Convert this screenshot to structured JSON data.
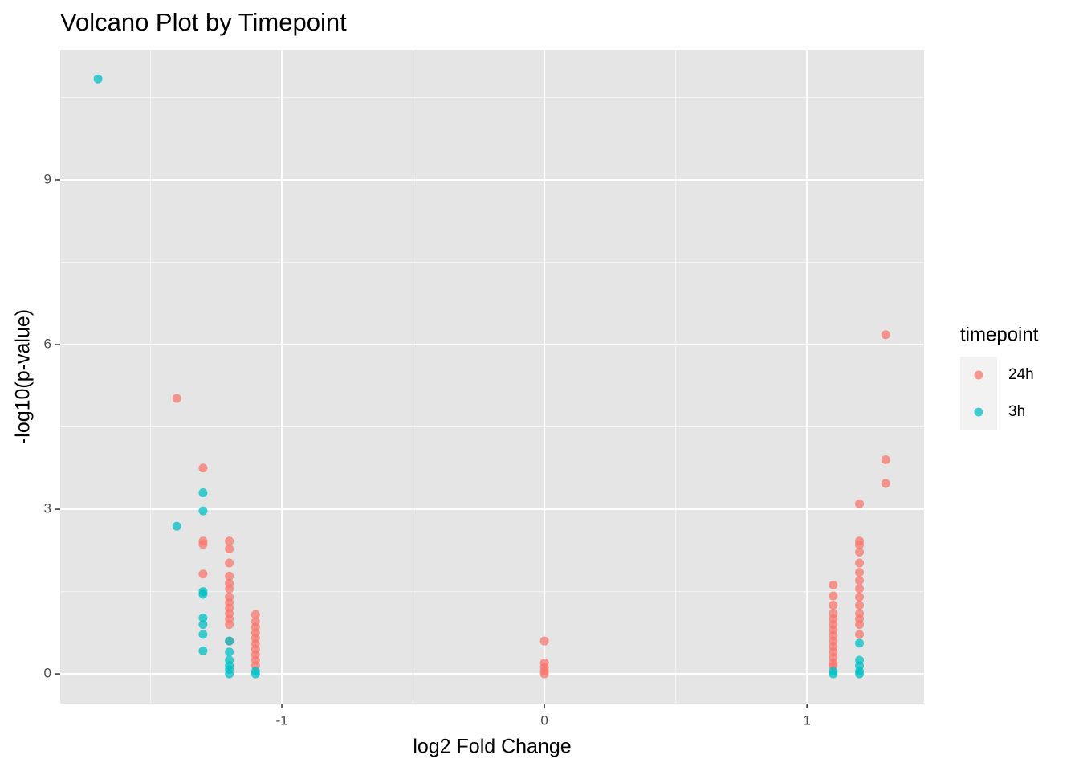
{
  "chart_data": {
    "type": "scatter",
    "title": "Volcano Plot by Timepoint",
    "x_label": "log2 Fold Change",
    "y_label": "-log10(p-value)",
    "xlim": [
      -1.844,
      1.446
    ],
    "ylim": [
      -0.54,
      11.37
    ],
    "xticks": [
      -1,
      0,
      1
    ],
    "yticks": [
      0,
      3,
      6,
      9
    ],
    "xminor": [
      -1.5,
      -0.5,
      0.5
    ],
    "yminor": [
      1.5,
      4.5,
      7.5,
      10.5
    ],
    "grid": true,
    "legend_title": "timepoint",
    "legend_position": "right",
    "series": [
      {
        "name": "24h",
        "color": "#F8766D",
        "x": [
          -1.4,
          -1.3,
          -1.3,
          -1.3,
          -1.3,
          -1.2,
          -1.2,
          -1.2,
          -1.2,
          -1.2,
          -1.2,
          -1.2,
          -1.2,
          -1.2,
          -1.2,
          -1.2,
          -1.2,
          -1.2,
          -1.1,
          -1.1,
          -1.1,
          -1.1,
          -1.1,
          -1.1,
          -1.1,
          -1.1,
          -1.1,
          -1.1,
          0,
          0,
          0,
          0,
          0,
          1.1,
          1.1,
          1.1,
          1.1,
          1.1,
          1.1,
          1.1,
          1.1,
          1.1,
          1.1,
          1.1,
          1.1,
          1.1,
          1.1,
          1.2,
          1.2,
          1.2,
          1.2,
          1.2,
          1.2,
          1.2,
          1.2,
          1.2,
          1.2,
          1.2,
          1.2,
          1.2,
          1.2,
          1.3,
          1.3,
          1.3
        ],
        "values": [
          5.02,
          3.75,
          2.42,
          2.36,
          1.82,
          2.42,
          2.28,
          2.02,
          1.78,
          1.65,
          1.55,
          1.4,
          1.3,
          1.2,
          1.1,
          1.0,
          0.9,
          0.6,
          1.08,
          0.95,
          0.85,
          0.75,
          0.65,
          0.55,
          0.45,
          0.35,
          0.25,
          0.15,
          0.6,
          0.2,
          0.12,
          0.05,
          0,
          1.62,
          1.42,
          1.25,
          1.1,
          1.0,
          0.9,
          0.8,
          0.7,
          0.6,
          0.5,
          0.4,
          0.3,
          0.2,
          0.15,
          3.1,
          2.42,
          2.35,
          2.22,
          2.02,
          1.85,
          1.7,
          1.55,
          1.4,
          1.25,
          1.1,
          1.0,
          0.9,
          0.72,
          6.18,
          3.9,
          3.47
        ]
      },
      {
        "name": "3h",
        "color": "#00BFC4",
        "x": [
          -1.7,
          -1.4,
          -1.3,
          -1.3,
          -1.3,
          -1.3,
          -1.3,
          -1.3,
          -1.3,
          -1.3,
          -1.2,
          -1.2,
          -1.2,
          -1.2,
          -1.2,
          -1.2,
          -1.1,
          -1.1,
          1.1,
          1.1,
          1.2,
          1.2,
          1.2,
          1.2,
          1.2
        ],
        "values": [
          10.84,
          2.69,
          3.3,
          2.97,
          1.5,
          1.45,
          1.02,
          0.9,
          0.72,
          0.42,
          0.6,
          0.4,
          0.25,
          0.15,
          0.08,
          0,
          0.05,
          0,
          0.05,
          0,
          0.56,
          0.25,
          0.15,
          0.05,
          0
        ]
      }
    ]
  }
}
